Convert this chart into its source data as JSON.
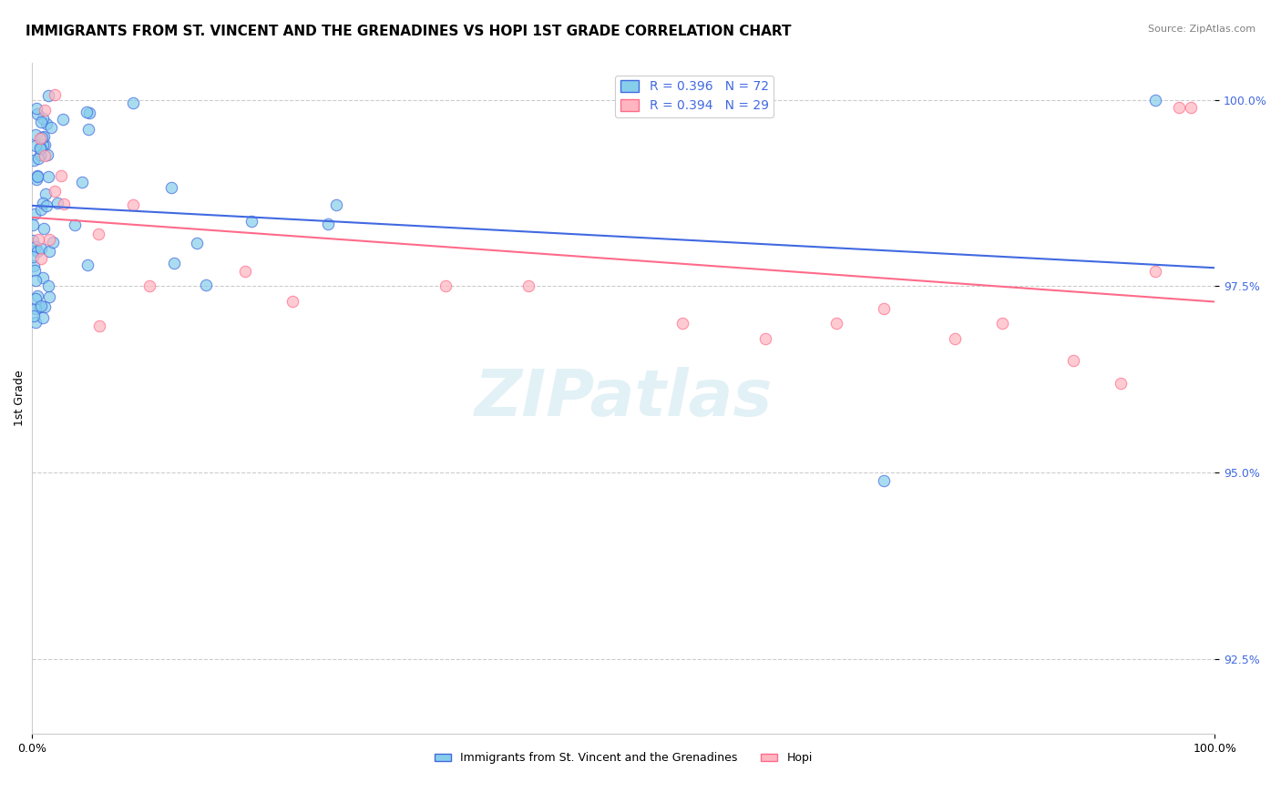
{
  "title": "IMMIGRANTS FROM ST. VINCENT AND THE GRENADINES VS HOPI 1ST GRADE CORRELATION CHART",
  "source": "Source: ZipAtlas.com",
  "xlabel": "",
  "ylabel": "1st Grade",
  "legend_label1": "Immigrants from St. Vincent and the Grenadines",
  "legend_label2": "Hopi",
  "R1": 0.396,
  "N1": 72,
  "R2": 0.394,
  "N2": 29,
  "color1": "#87CEEB",
  "color2": "#FFB6C1",
  "line_color1": "#4169E1",
  "line_color2": "#FF6B8A",
  "xlim": [
    0.0,
    1.0
  ],
  "ylim": [
    0.915,
    1.005
  ],
  "yticks": [
    0.925,
    0.95,
    0.975,
    1.0
  ],
  "ytick_labels": [
    "92.5%",
    "95.0%",
    "97.5%",
    "100.0%"
  ],
  "background_color": "#ffffff",
  "grid_color": "#cccccc",
  "watermark_text": "ZIPatlas",
  "title_fontsize": 11,
  "axis_fontsize": 9,
  "legend_fontsize": 10
}
